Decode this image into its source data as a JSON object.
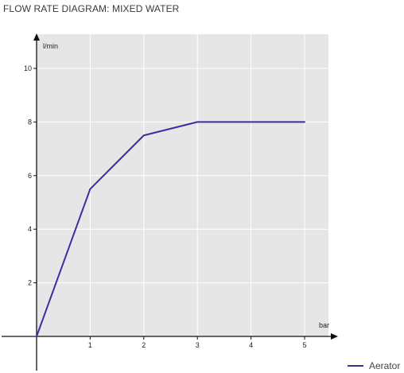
{
  "page": {
    "title": "FLOW RATE DIAGRAM: MIXED WATER"
  },
  "chart_data": {
    "type": "line",
    "title": "FLOW RATE DIAGRAM: MIXED WATER",
    "xlabel": "bar",
    "ylabel": "l/min",
    "xlim": [
      0,
      5
    ],
    "ylim": [
      0,
      10
    ],
    "xticks": [
      "1",
      "2",
      "3",
      "4",
      "5"
    ],
    "yticks": [
      "2",
      "4",
      "6",
      "8",
      "10"
    ],
    "grid": true,
    "legend_position": "bottom-right",
    "plot_background": "#e6e6e6",
    "grid_color": "#ffffff",
    "series": [
      {
        "name": "Aerator",
        "color": "#3a2fa0",
        "x": [
          0,
          1,
          2,
          3,
          4,
          5
        ],
        "y": [
          0,
          5.5,
          7.5,
          8,
          8,
          8
        ]
      }
    ]
  }
}
